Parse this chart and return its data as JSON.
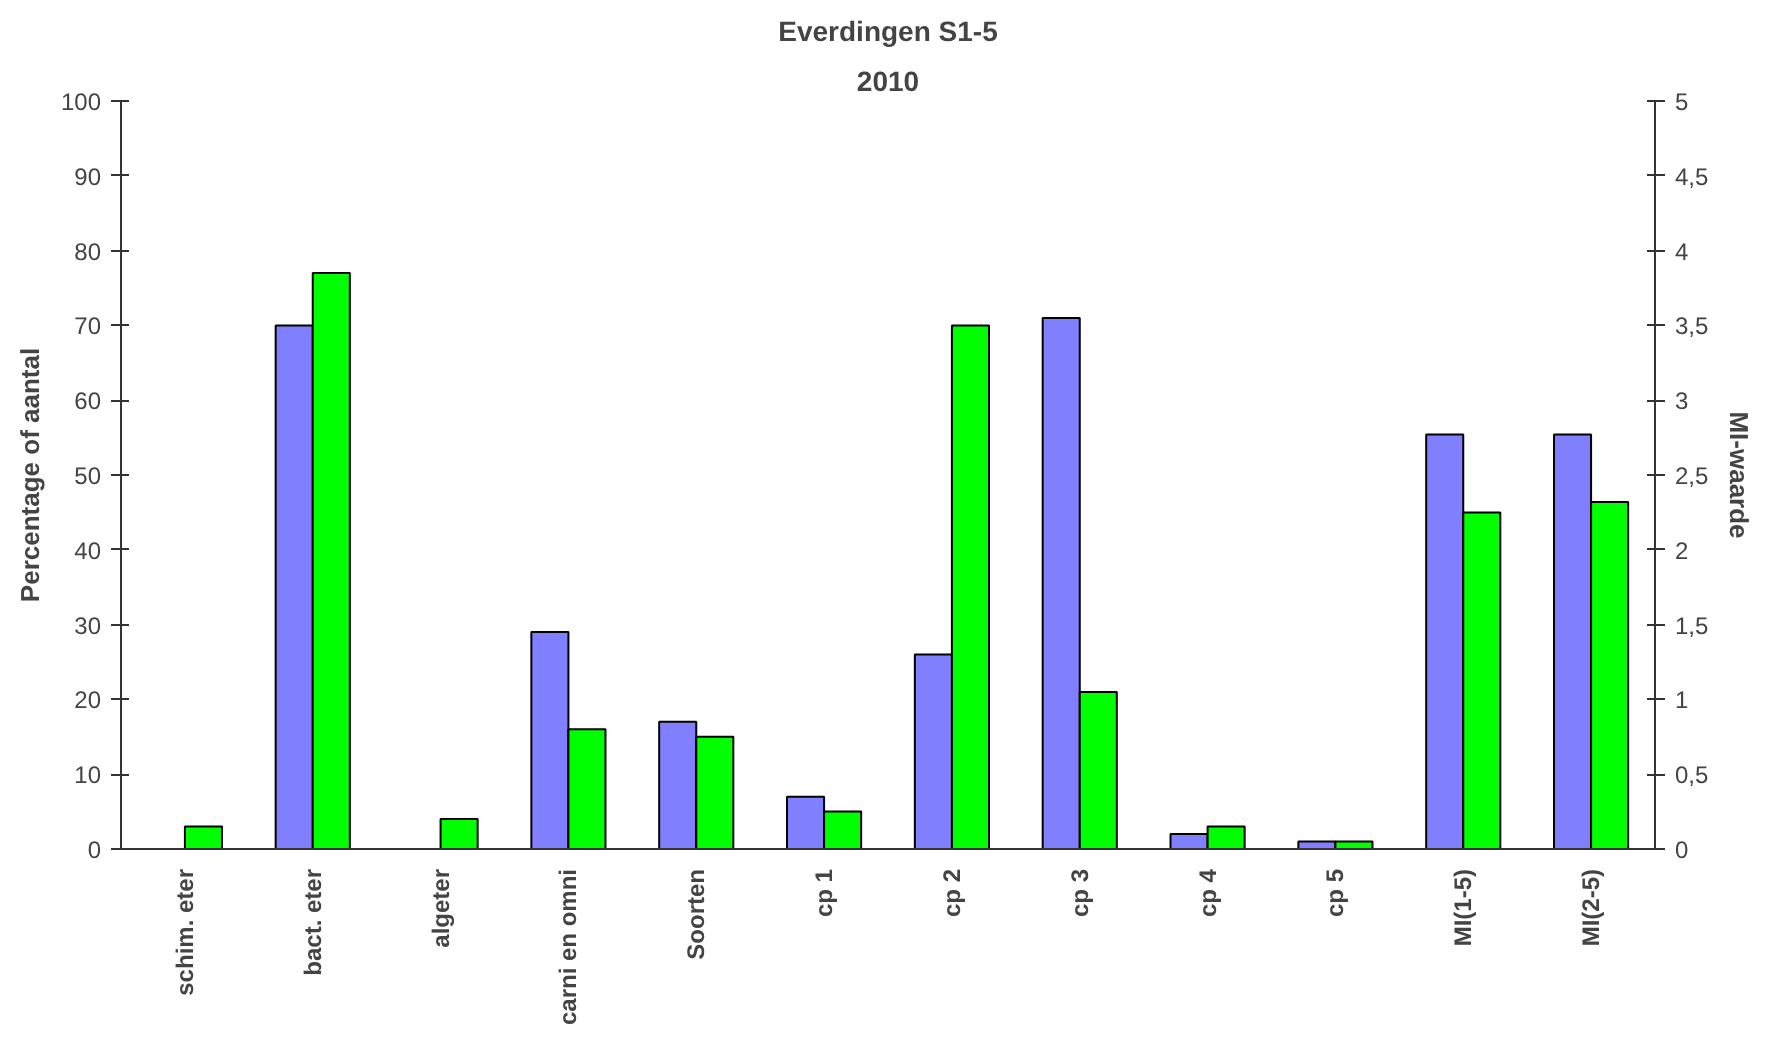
{
  "chart_data": {
    "type": "bar",
    "title": "Everdingen S1-5",
    "subtitle": "2010",
    "ylabel": "Percentage of aantal",
    "y2label": "MI-waarde",
    "categories": [
      "schim. eter",
      "bact. eter",
      "algeter",
      "carni en omni",
      "Soorten",
      "cp 1",
      "cp 2",
      "cp 3",
      "cp 4",
      "cp 5",
      "MI(1-5)",
      "MI(2-5)"
    ],
    "series": [
      {
        "color": "#8080ff",
        "values": [
          null,
          70,
          null,
          29,
          17,
          7,
          26,
          71,
          2,
          1,
          null,
          null
        ]
      },
      {
        "color": "#00ff00",
        "values": [
          3,
          77,
          4,
          16,
          15,
          5,
          70,
          21,
          3,
          1,
          null,
          null
        ]
      },
      {
        "color": "#8080ff",
        "axis": "y2",
        "values": [
          null,
          null,
          null,
          null,
          null,
          null,
          null,
          null,
          null,
          null,
          2.77,
          2.77
        ]
      },
      {
        "color": "#00ff00",
        "axis": "y2",
        "values": [
          null,
          null,
          null,
          null,
          null,
          null,
          null,
          null,
          null,
          null,
          2.25,
          2.32
        ]
      }
    ],
    "ylim": [
      0,
      100
    ],
    "yticks": [
      0,
      10,
      20,
      30,
      40,
      50,
      60,
      70,
      80,
      90,
      100
    ],
    "y2lim": [
      0,
      5
    ],
    "y2ticks": [
      0,
      {
        "value": 0.5,
        "label": "0,5"
      },
      1,
      {
        "value": 1.5,
        "label": "1,5"
      },
      2,
      {
        "value": 2.5,
        "label": "2,5"
      },
      3,
      {
        "value": 3.5,
        "label": "3,5"
      },
      4,
      {
        "value": 4.5,
        "label": "4,5"
      },
      5
    ],
    "grid": false
  }
}
